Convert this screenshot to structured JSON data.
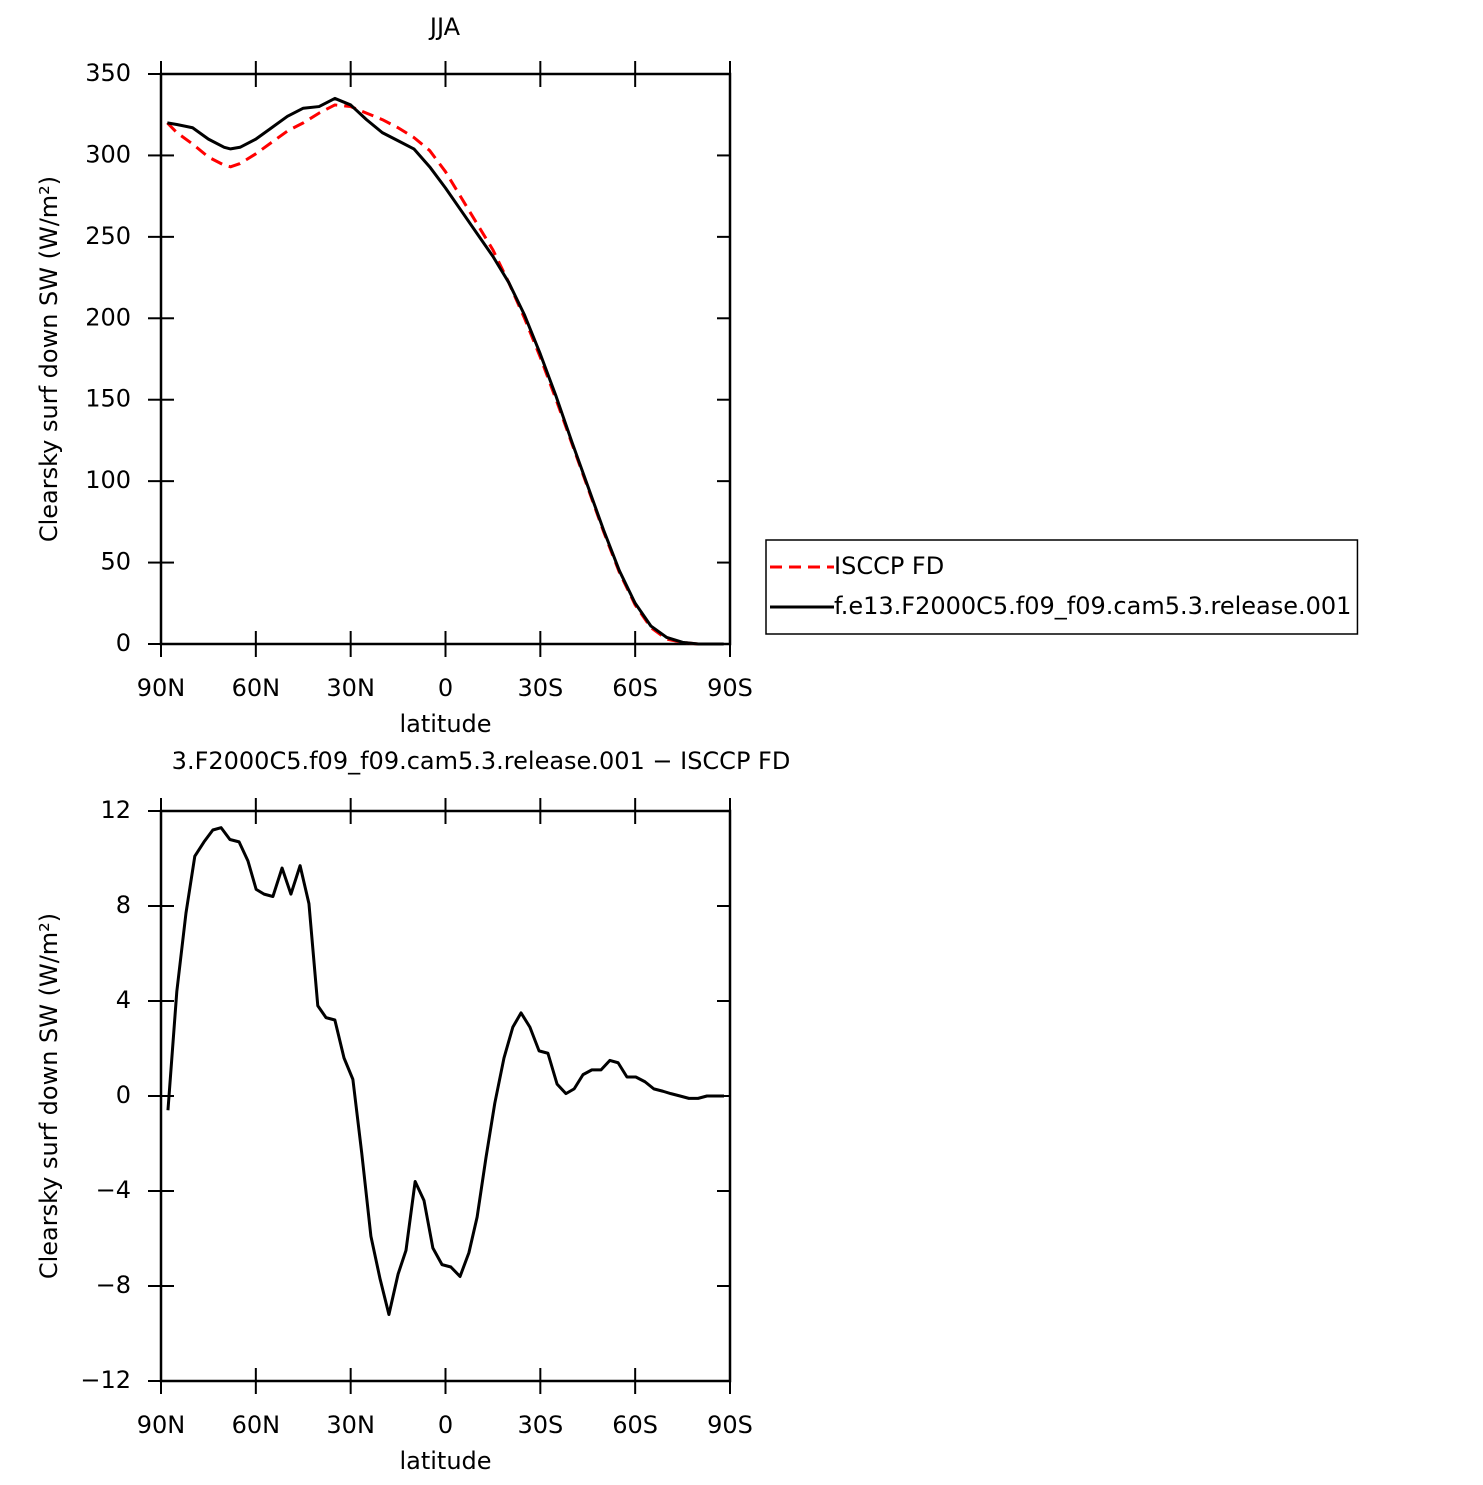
{
  "chart_data": [
    {
      "type": "line",
      "title": "JJA",
      "xlabel": "latitude",
      "ylabel": "Clearsky surf down SW (W/m²)",
      "x": [
        88,
        85,
        80,
        75,
        70,
        68,
        65,
        60,
        55,
        50,
        45,
        40,
        35,
        30,
        25,
        20,
        15,
        10,
        5,
        0,
        -5,
        -10,
        -15,
        -20,
        -25,
        -30,
        -35,
        -40,
        -45,
        -50,
        -55,
        -60,
        -65,
        -70,
        -75,
        -80,
        -85,
        -88
      ],
      "series": [
        {
          "name": "ISCCP FD",
          "color": "#ff0000",
          "dash": true,
          "values": [
            320,
            314,
            307,
            299,
            294,
            293,
            295,
            301,
            308,
            315,
            320,
            326,
            331,
            330,
            326,
            322,
            317,
            311,
            303,
            290,
            274,
            258,
            242,
            222,
            200,
            176,
            150,
            123,
            96,
            69,
            44,
            24,
            10,
            3,
            1,
            0,
            0,
            0
          ]
        },
        {
          "name": "f.e13.F2000C5.f09_f09.cam5.3.release.001",
          "color": "#000000",
          "dash": false,
          "values": [
            320,
            319,
            317,
            310,
            305,
            304,
            305,
            310,
            317,
            324,
            329,
            330,
            335,
            331,
            322,
            314,
            309,
            304,
            293,
            280,
            266,
            252,
            238,
            222,
            202,
            178,
            152,
            124,
            97,
            70,
            45,
            25,
            11,
            4,
            1,
            0,
            0,
            0
          ]
        }
      ],
      "xlim": [
        90,
        -90
      ],
      "xticks": [
        {
          "value": 90,
          "label": "90N"
        },
        {
          "value": 60,
          "label": "60N"
        },
        {
          "value": 30,
          "label": "30N"
        },
        0,
        {
          "value": -30,
          "label": "30S"
        },
        {
          "value": -60,
          "label": "60S"
        },
        {
          "value": -90,
          "label": "90S"
        }
      ],
      "ylim": [
        0,
        350
      ],
      "yticks": [
        0,
        50,
        100,
        150,
        200,
        250,
        300,
        350
      ],
      "legend": "right"
    },
    {
      "type": "line",
      "title": "3.F2000C5.f09_f09.cam5.3.release.001 − ISCCP FD",
      "xlabel": "latitude",
      "ylabel": "Clearsky surf down SW (W/m²)",
      "x": [
        87.8,
        85.0,
        82.1,
        79.3,
        76.4,
        73.6,
        71.0,
        68.2,
        65.3,
        62.5,
        59.9,
        57.4,
        54.6,
        51.7,
        48.9,
        46.0,
        43.2,
        40.4,
        37.8,
        35.0,
        32.1,
        29.3,
        26.5,
        23.6,
        20.7,
        17.9,
        15.0,
        12.5,
        9.6,
        6.8,
        4.0,
        1.1,
        -1.7,
        -4.6,
        -7.4,
        -10.0,
        -12.8,
        -15.6,
        -18.5,
        -21.3,
        -23.9,
        -26.7,
        -29.6,
        -32.4,
        -35.3,
        -38.1,
        -40.7,
        -43.5,
        -46.3,
        -49.2,
        -52.0,
        -54.6,
        -57.4,
        -60.2,
        -63.1,
        -65.9,
        -68.8,
        -71.3,
        -74.2,
        -77.0,
        -79.9,
        -82.7,
        -85.6,
        -88.1
      ],
      "series": [
        {
          "color": "#000000",
          "dash": false,
          "values": [
            -0.6,
            4.4,
            7.7,
            10.1,
            10.7,
            11.2,
            11.3,
            10.8,
            10.7,
            9.9,
            8.7,
            8.5,
            8.4,
            9.6,
            8.5,
            9.7,
            8.1,
            3.8,
            3.3,
            3.2,
            1.6,
            0.7,
            -2.4,
            -5.9,
            -7.7,
            -9.2,
            -7.5,
            -6.5,
            -3.6,
            -4.4,
            -6.4,
            -7.1,
            -7.2,
            -7.6,
            -6.6,
            -5.1,
            -2.6,
            -0.3,
            1.6,
            2.9,
            3.5,
            2.9,
            1.9,
            1.8,
            0.5,
            0.1,
            0.3,
            0.9,
            1.1,
            1.1,
            1.5,
            1.4,
            0.8,
            0.8,
            0.6,
            0.3,
            0.2,
            0.1,
            0.0,
            -0.1,
            -0.1,
            0.0,
            0.0,
            0.0
          ]
        }
      ],
      "xlim": [
        90,
        -90
      ],
      "xticks": [
        {
          "value": 90,
          "label": "90N"
        },
        {
          "value": 60,
          "label": "60N"
        },
        {
          "value": 30,
          "label": "30N"
        },
        0,
        {
          "value": -30,
          "label": "30S"
        },
        {
          "value": -60,
          "label": "60S"
        },
        {
          "value": -90,
          "label": "90S"
        }
      ],
      "ylim": [
        -12,
        12
      ],
      "yticks": [
        {
          "value": -12,
          "label": "−12"
        },
        {
          "value": -8,
          "label": "−8"
        },
        {
          "value": -4,
          "label": "−4"
        },
        0,
        4,
        8,
        12
      ]
    }
  ]
}
